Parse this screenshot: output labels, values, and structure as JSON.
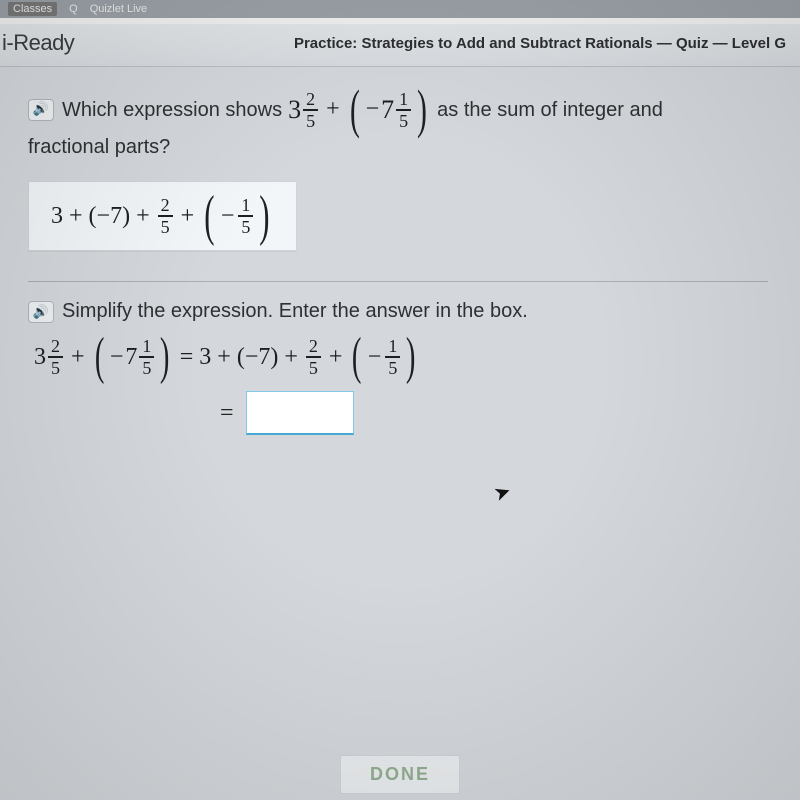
{
  "colors": {
    "page_bg": "#d4d8dc",
    "header_bg_top": "#e2e5e8",
    "header_bg_bottom": "#d7dbdf",
    "text": "#2e3133",
    "math": "#1d1f21",
    "card_bg": "#f3f6f8",
    "card_border": "#cfd4d8",
    "divider": "#a9afb4",
    "input_border": "#85c7e8",
    "input_underline": "#4aa9d4",
    "done_text": "#8da98a"
  },
  "top_tabs": {
    "classes": "Classes",
    "quizlet": "Quizlet Live"
  },
  "brand": {
    "prefix_cut": "i",
    "name": "i-Ready"
  },
  "lesson_title": "Practice: Strategies to Add and Subtract Rationals — Quiz — Level G",
  "speaker_glyph": "🔊",
  "q1": {
    "lead": "Which expression shows",
    "mixed1": {
      "whole": "3",
      "num": "2",
      "den": "5"
    },
    "plus": "+",
    "lparen": "(",
    "neg": "−",
    "mixed2": {
      "whole": "7",
      "num": "1",
      "den": "5"
    },
    "rparen": ")",
    "tail": "as the sum of integer and",
    "line2": "fractional parts?"
  },
  "answer1": {
    "a": "3",
    "plus1": "+",
    "b": "(−7)",
    "plus2": "+",
    "frac1": {
      "num": "2",
      "den": "5"
    },
    "plus3": "+",
    "lparen": "(",
    "neg": "−",
    "frac2": {
      "num": "1",
      "den": "5"
    },
    "rparen": ")"
  },
  "q2": {
    "inst": "Simplify the expression. Enter the answer in the box."
  },
  "eq": {
    "lhs_mixed1": {
      "whole": "3",
      "num": "2",
      "den": "5"
    },
    "plus": "+",
    "lparen": "(",
    "neg": "−",
    "lhs_mixed2": {
      "whole": "7",
      "num": "1",
      "den": "5"
    },
    "rparen": ")",
    "eqs": "=",
    "r_a": "3",
    "r_plus1": "+",
    "r_b": "(−7)",
    "r_plus2": "+",
    "r_frac1": {
      "num": "2",
      "den": "5"
    },
    "r_plus3": "+",
    "r_lparen": "(",
    "r_neg": "−",
    "r_frac2": {
      "num": "1",
      "den": "5"
    },
    "r_rparen": ")"
  },
  "eq2_sign": "=",
  "answer_value": "",
  "done_label": "DONE"
}
